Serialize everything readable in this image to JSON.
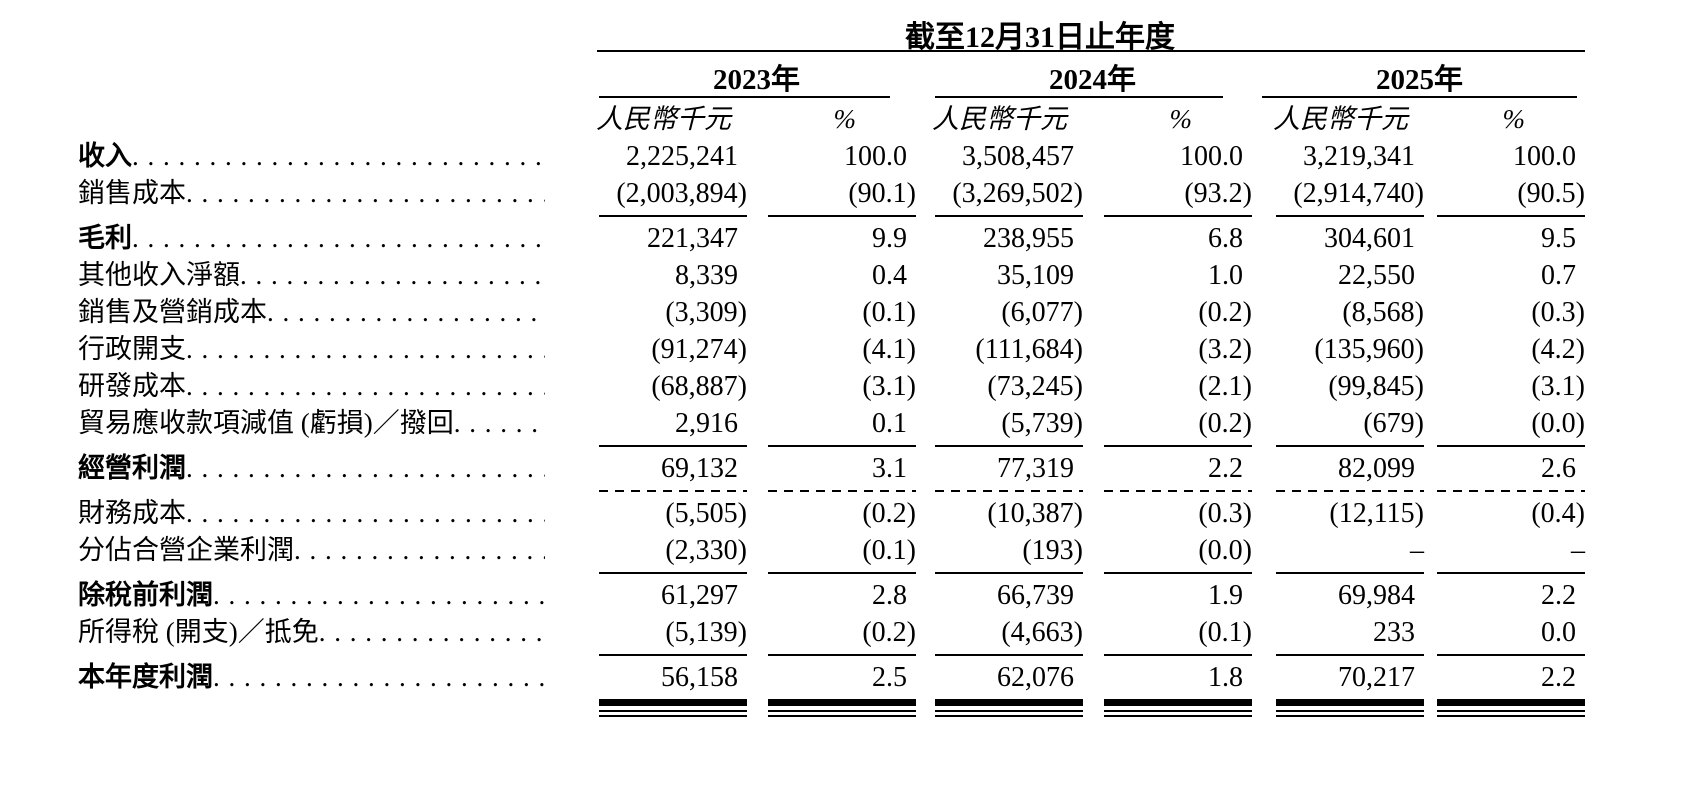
{
  "page": {
    "background": "#ffffff",
    "text_color": "#000000"
  },
  "table": {
    "title": "截至12月31日止年度",
    "years": [
      "2023年",
      "2024年",
      "2025年"
    ],
    "amount_header": "人民幣千元",
    "percent_header": "%",
    "rows": [
      {
        "label": "收入",
        "bold": true,
        "values": [
          "2,225,241",
          "100.0",
          "3,508,457",
          "100.0",
          "3,219,341",
          "100.0"
        ],
        "rule_after": null
      },
      {
        "label": "銷售成本",
        "bold": false,
        "values": [
          "(2,003,894)",
          "(90.1)",
          "(3,269,502)",
          "(93.2)",
          "(2,914,740)",
          "(90.5)"
        ],
        "rule_after": "solid"
      },
      {
        "label": "毛利",
        "bold": true,
        "values": [
          "221,347",
          "9.9",
          "238,955",
          "6.8",
          "304,601",
          "9.5"
        ],
        "rule_after": null
      },
      {
        "label": "其他收入淨額",
        "bold": false,
        "values": [
          "8,339",
          "0.4",
          "35,109",
          "1.0",
          "22,550",
          "0.7"
        ],
        "rule_after": null
      },
      {
        "label": "銷售及營銷成本",
        "bold": false,
        "values": [
          "(3,309)",
          "(0.1)",
          "(6,077)",
          "(0.2)",
          "(8,568)",
          "(0.3)"
        ],
        "rule_after": null
      },
      {
        "label": "行政開支",
        "bold": false,
        "values": [
          "(91,274)",
          "(4.1)",
          "(111,684)",
          "(3.2)",
          "(135,960)",
          "(4.2)"
        ],
        "rule_after": null
      },
      {
        "label": "研發成本",
        "bold": false,
        "values": [
          "(68,887)",
          "(3.1)",
          "(73,245)",
          "(2.1)",
          "(99,845)",
          "(3.1)"
        ],
        "rule_after": null
      },
      {
        "label": "貿易應收款項減值 (虧損)／撥回",
        "bold": false,
        "values": [
          "2,916",
          "0.1",
          "(5,739)",
          "(0.2)",
          "(679)",
          "(0.0)"
        ],
        "rule_after": "solid"
      },
      {
        "label": "經營利潤",
        "bold": true,
        "values": [
          "69,132",
          "3.1",
          "77,319",
          "2.2",
          "82,099",
          "2.6"
        ],
        "rule_after": "dashed"
      },
      {
        "label": "財務成本",
        "bold": false,
        "values": [
          "(5,505)",
          "(0.2)",
          "(10,387)",
          "(0.3)",
          "(12,115)",
          "(0.4)"
        ],
        "rule_after": null
      },
      {
        "label": "分佔合營企業利潤",
        "bold": false,
        "values": [
          "(2,330)",
          "(0.1)",
          "(193)",
          "(0.0)",
          "–",
          "–"
        ],
        "rule_after": "solid"
      },
      {
        "label": "除稅前利潤",
        "bold": true,
        "values": [
          "61,297",
          "2.8",
          "66,739",
          "1.9",
          "69,984",
          "2.2"
        ],
        "rule_after": null
      },
      {
        "label": "所得稅 (開支)／抵免",
        "bold": false,
        "values": [
          "(5,139)",
          "(0.2)",
          "(4,663)",
          "(0.1)",
          "233",
          "0.0"
        ],
        "rule_after": "solid"
      },
      {
        "label": "本年度利潤",
        "bold": true,
        "values": [
          "56,158",
          "2.5",
          "62,076",
          "1.8",
          "70,217",
          "2.2"
        ],
        "rule_after": "double"
      }
    ]
  }
}
